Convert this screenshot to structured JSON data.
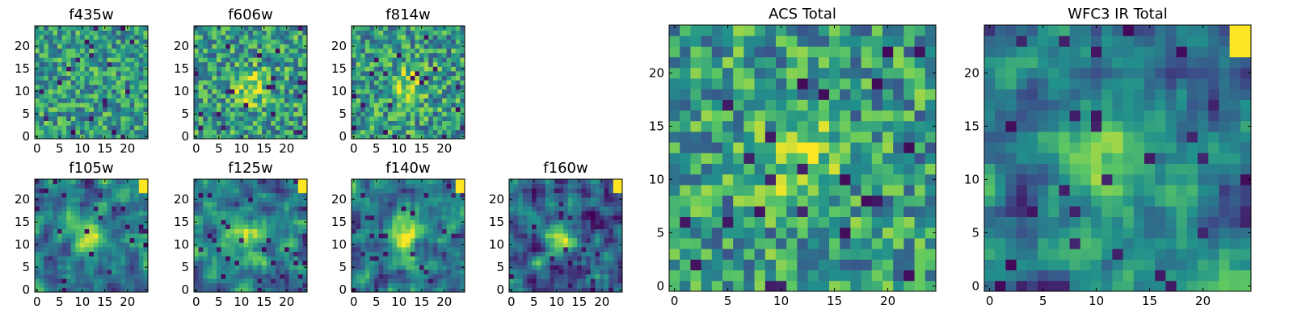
{
  "colormap": {
    "name": "viridis",
    "stops": [
      "#440154",
      "#3b528b",
      "#21918c",
      "#5ec962",
      "#fde725"
    ]
  },
  "chart_data": [
    {
      "type": "heatmap",
      "title": "f435w",
      "grid_size": 25,
      "xlim": [
        0,
        24
      ],
      "ylim": [
        0,
        24
      ],
      "xticks": [
        "0",
        "5",
        "10",
        "15",
        "20"
      ],
      "yticks": [
        "0",
        "5",
        "10",
        "15",
        "20"
      ],
      "style": "noisy-bright",
      "peak": [
        12,
        12
      ],
      "bright_corner": false
    },
    {
      "type": "heatmap",
      "title": "f606w",
      "grid_size": 25,
      "xlim": [
        0,
        24
      ],
      "ylim": [
        0,
        24
      ],
      "xticks": [
        "0",
        "5",
        "10",
        "15",
        "20"
      ],
      "yticks": [
        "0",
        "5",
        "10",
        "15",
        "20"
      ],
      "style": "noisy-source",
      "peak": [
        12,
        11
      ],
      "bright_corner": false
    },
    {
      "type": "heatmap",
      "title": "f814w",
      "grid_size": 25,
      "xlim": [
        0,
        24
      ],
      "ylim": [
        0,
        24
      ],
      "xticks": [
        "0",
        "5",
        "10",
        "15",
        "20"
      ],
      "yticks": [
        "0",
        "5",
        "10",
        "15",
        "20"
      ],
      "style": "noisy-source",
      "peak": [
        12,
        11
      ],
      "bright_corner": false
    },
    {
      "type": "heatmap",
      "title": "f105w",
      "grid_size": 25,
      "xlim": [
        0,
        24
      ],
      "ylim": [
        0,
        24
      ],
      "xticks": [
        "0",
        "5",
        "10",
        "15",
        "20"
      ],
      "yticks": [
        "0",
        "5",
        "10",
        "15",
        "20"
      ],
      "style": "smooth-source",
      "peak": [
        11,
        12
      ],
      "bright_corner": true
    },
    {
      "type": "heatmap",
      "title": "f125w",
      "grid_size": 25,
      "xlim": [
        0,
        24
      ],
      "ylim": [
        0,
        24
      ],
      "xticks": [
        "0",
        "5",
        "10",
        "15",
        "20"
      ],
      "yticks": [
        "0",
        "5",
        "10",
        "15",
        "20"
      ],
      "style": "smooth-source",
      "peak": [
        11,
        12
      ],
      "bright_corner": true
    },
    {
      "type": "heatmap",
      "title": "f140w",
      "grid_size": 25,
      "xlim": [
        0,
        24
      ],
      "ylim": [
        0,
        24
      ],
      "xticks": [
        "0",
        "5",
        "10",
        "15",
        "20"
      ],
      "yticks": [
        "0",
        "5",
        "10",
        "15",
        "20"
      ],
      "style": "smooth-source",
      "peak": [
        11,
        12
      ],
      "bright_corner": true
    },
    {
      "type": "heatmap",
      "title": "f160w",
      "grid_size": 25,
      "xlim": [
        0,
        24
      ],
      "ylim": [
        0,
        24
      ],
      "xticks": [
        "0",
        "5",
        "10",
        "15",
        "20"
      ],
      "yticks": [
        "0",
        "5",
        "10",
        "15",
        "20"
      ],
      "style": "dark-source",
      "peak": [
        11,
        12
      ],
      "bright_corner": true
    },
    {
      "type": "heatmap",
      "title": "ACS Total",
      "grid_size": 25,
      "xlim": [
        0,
        24
      ],
      "ylim": [
        0,
        24
      ],
      "xticks": [
        "0",
        "5",
        "10",
        "15",
        "20"
      ],
      "yticks": [
        "0",
        "5",
        "10",
        "15",
        "20"
      ],
      "style": "noisy-source",
      "peak": [
        12,
        12
      ],
      "bright_corner": false
    },
    {
      "type": "heatmap",
      "title": "WFC3 IR Total",
      "grid_size": 25,
      "xlim": [
        0,
        24
      ],
      "ylim": [
        0,
        24
      ],
      "xticks": [
        "0",
        "5",
        "10",
        "15",
        "20"
      ],
      "yticks": [
        "0",
        "5",
        "10",
        "15",
        "20"
      ],
      "style": "smooth-source",
      "peak": [
        11,
        12
      ],
      "bright_corner": true
    }
  ]
}
